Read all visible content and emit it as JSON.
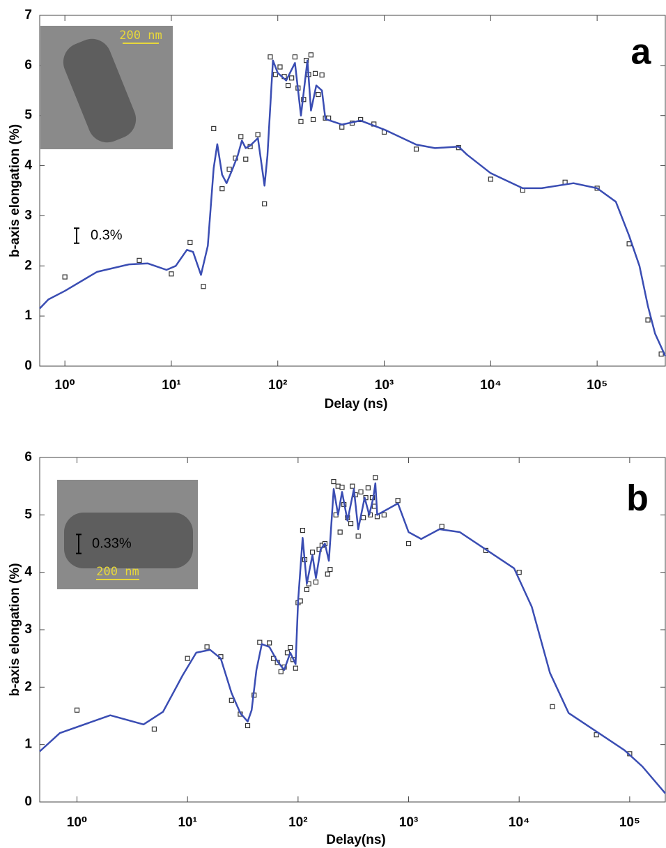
{
  "chart_data": [
    {
      "type": "line",
      "panel_label": "a",
      "xlabel": "Delay (ns)",
      "ylabel": "b-axis elongation (%)",
      "log_x": true,
      "xlim": [
        0.58,
        437000
      ],
      "ylim": [
        0,
        7
      ],
      "xticks": [
        {
          "value": 1,
          "label": "10⁰"
        },
        {
          "value": 10,
          "label": "10¹"
        },
        {
          "value": 100,
          "label": "10²"
        },
        {
          "value": 1000,
          "label": "10³"
        },
        {
          "value": 10000,
          "label": "10⁴"
        },
        {
          "value": 100000,
          "label": "10⁵"
        }
      ],
      "yticks": [
        0,
        1,
        2,
        3,
        4,
        5,
        6,
        7
      ],
      "scale_bar": {
        "value": 0.3,
        "label": "0.3%"
      },
      "inset": {
        "scale_label": "200 nm"
      },
      "series": [
        {
          "style": "markers",
          "color": "#333333",
          "x": [
            1,
            5,
            10,
            15,
            20,
            25,
            30,
            35,
            40,
            45,
            50,
            55,
            65,
            75,
            85,
            95,
            105,
            115,
            125,
            135,
            145,
            155,
            165,
            175,
            185,
            195,
            205,
            215,
            225,
            240,
            260,
            280,
            300,
            400,
            500,
            600,
            800,
            1000,
            2000,
            5000,
            10000,
            20000,
            50000,
            100000,
            200000,
            300000,
            400000
          ],
          "values": [
            1.78,
            2.11,
            1.84,
            2.47,
            1.59,
            4.74,
            3.54,
            3.93,
            4.15,
            4.58,
            4.13,
            4.38,
            4.62,
            3.24,
            6.17,
            5.82,
            5.97,
            5.78,
            5.6,
            5.75,
            6.17,
            5.55,
            4.88,
            5.32,
            6.1,
            5.82,
            6.21,
            4.92,
            5.84,
            5.42,
            5.81,
            4.95,
            4.95,
            4.77,
            4.85,
            4.92,
            4.83,
            4.67,
            4.33,
            4.36,
            3.73,
            3.51,
            3.67,
            3.55,
            2.44,
            0.92,
            0.24
          ]
        },
        {
          "style": "line",
          "color": "#3a4db3",
          "x": [
            0.58,
            0.7,
            1,
            2,
            4,
            6,
            9,
            11,
            14,
            16,
            19,
            22,
            25,
            27,
            30,
            33,
            37,
            42,
            46,
            50,
            55,
            65,
            75,
            80,
            90,
            100,
            120,
            145,
            165,
            190,
            205,
            230,
            260,
            280,
            400,
            600,
            1000,
            2000,
            3000,
            5000,
            6000,
            10000,
            20000,
            30000,
            60000,
            100000,
            150000,
            200000,
            250000,
            300000,
            350000,
            437000
          ],
          "values": [
            1.15,
            1.33,
            1.5,
            1.88,
            2.03,
            2.05,
            1.92,
            2.0,
            2.32,
            2.28,
            1.82,
            2.4,
            3.95,
            4.43,
            3.82,
            3.65,
            3.9,
            4.2,
            4.5,
            4.35,
            4.4,
            4.55,
            3.6,
            4.2,
            6.1,
            5.85,
            5.7,
            6.05,
            5.0,
            6.1,
            5.1,
            5.6,
            5.5,
            4.93,
            4.82,
            4.9,
            4.72,
            4.42,
            4.35,
            4.38,
            4.22,
            3.85,
            3.55,
            3.55,
            3.65,
            3.55,
            3.28,
            2.6,
            2.0,
            1.2,
            0.65,
            0.2
          ]
        }
      ]
    },
    {
      "type": "line",
      "panel_label": "b",
      "xlabel": "Delay(ns)",
      "ylabel": "b-axis elongation (%)",
      "log_x": true,
      "xlim": [
        0.46,
        210000
      ],
      "ylim": [
        0,
        6
      ],
      "xticks": [
        {
          "value": 1,
          "label": "10⁰"
        },
        {
          "value": 10,
          "label": "10¹"
        },
        {
          "value": 100,
          "label": "10²"
        },
        {
          "value": 1000,
          "label": "10³"
        },
        {
          "value": 10000,
          "label": "10⁴"
        },
        {
          "value": 100000,
          "label": "10⁵"
        }
      ],
      "yticks": [
        0,
        1,
        2,
        3,
        4,
        5,
        6
      ],
      "scale_bar": {
        "value": 0.33,
        "label": "0.33%"
      },
      "inset": {
        "scale_label": "200 nm"
      },
      "series": [
        {
          "style": "markers",
          "color": "#333333",
          "x": [
            1,
            5,
            10,
            15,
            20,
            25,
            30,
            35,
            40,
            45,
            55,
            60,
            65,
            70,
            75,
            80,
            85,
            90,
            95,
            100,
            105,
            110,
            115,
            120,
            125,
            135,
            145,
            155,
            165,
            175,
            185,
            195,
            210,
            220,
            230,
            240,
            250,
            260,
            280,
            300,
            310,
            330,
            350,
            370,
            390,
            410,
            430,
            450,
            470,
            490,
            500,
            520,
            600,
            800,
            1000,
            2000,
            5000,
            10000,
            20000,
            50000,
            100000
          ],
          "values": [
            1.6,
            1.27,
            2.5,
            2.7,
            2.53,
            1.77,
            1.53,
            1.33,
            1.86,
            2.78,
            2.77,
            2.5,
            2.43,
            2.27,
            2.35,
            2.6,
            2.69,
            2.48,
            2.33,
            3.47,
            3.5,
            4.73,
            4.22,
            3.7,
            3.8,
            4.35,
            3.83,
            4.4,
            4.47,
            4.5,
            3.97,
            4.05,
            5.58,
            5.0,
            5.5,
            4.7,
            5.48,
            5.18,
            4.95,
            4.85,
            5.5,
            5.35,
            4.63,
            5.4,
            4.95,
            5.3,
            5.47,
            5.0,
            5.3,
            5.15,
            5.65,
            4.97,
            5.0,
            5.25,
            4.5,
            4.8,
            4.38,
            4.0,
            1.66,
            1.17,
            0.84
          ]
        },
        {
          "style": "line",
          "color": "#3a4db3",
          "x": [
            0.46,
            0.7,
            2,
            4,
            6,
            9,
            12,
            16,
            20,
            25,
            30,
            35,
            38,
            42,
            47,
            55,
            65,
            75,
            85,
            95,
            100,
            110,
            120,
            135,
            145,
            160,
            175,
            190,
            210,
            230,
            250,
            280,
            320,
            350,
            400,
            440,
            480,
            500,
            520,
            800,
            1000,
            1300,
            1900,
            2900,
            9000,
            13000,
            19000,
            28000,
            90000,
            130000,
            210000
          ],
          "values": [
            0.88,
            1.2,
            1.51,
            1.35,
            1.57,
            2.2,
            2.6,
            2.65,
            2.5,
            1.9,
            1.55,
            1.4,
            1.6,
            2.3,
            2.75,
            2.7,
            2.45,
            2.3,
            2.6,
            2.4,
            3.5,
            4.6,
            3.8,
            4.3,
            3.9,
            4.4,
            4.5,
            4.2,
            5.45,
            5.0,
            5.4,
            4.9,
            5.45,
            4.75,
            5.3,
            5.0,
            5.3,
            5.55,
            5.0,
            5.2,
            4.7,
            4.58,
            4.75,
            4.7,
            4.07,
            3.4,
            2.25,
            1.55,
            0.9,
            0.62,
            0.15
          ]
        }
      ]
    }
  ]
}
